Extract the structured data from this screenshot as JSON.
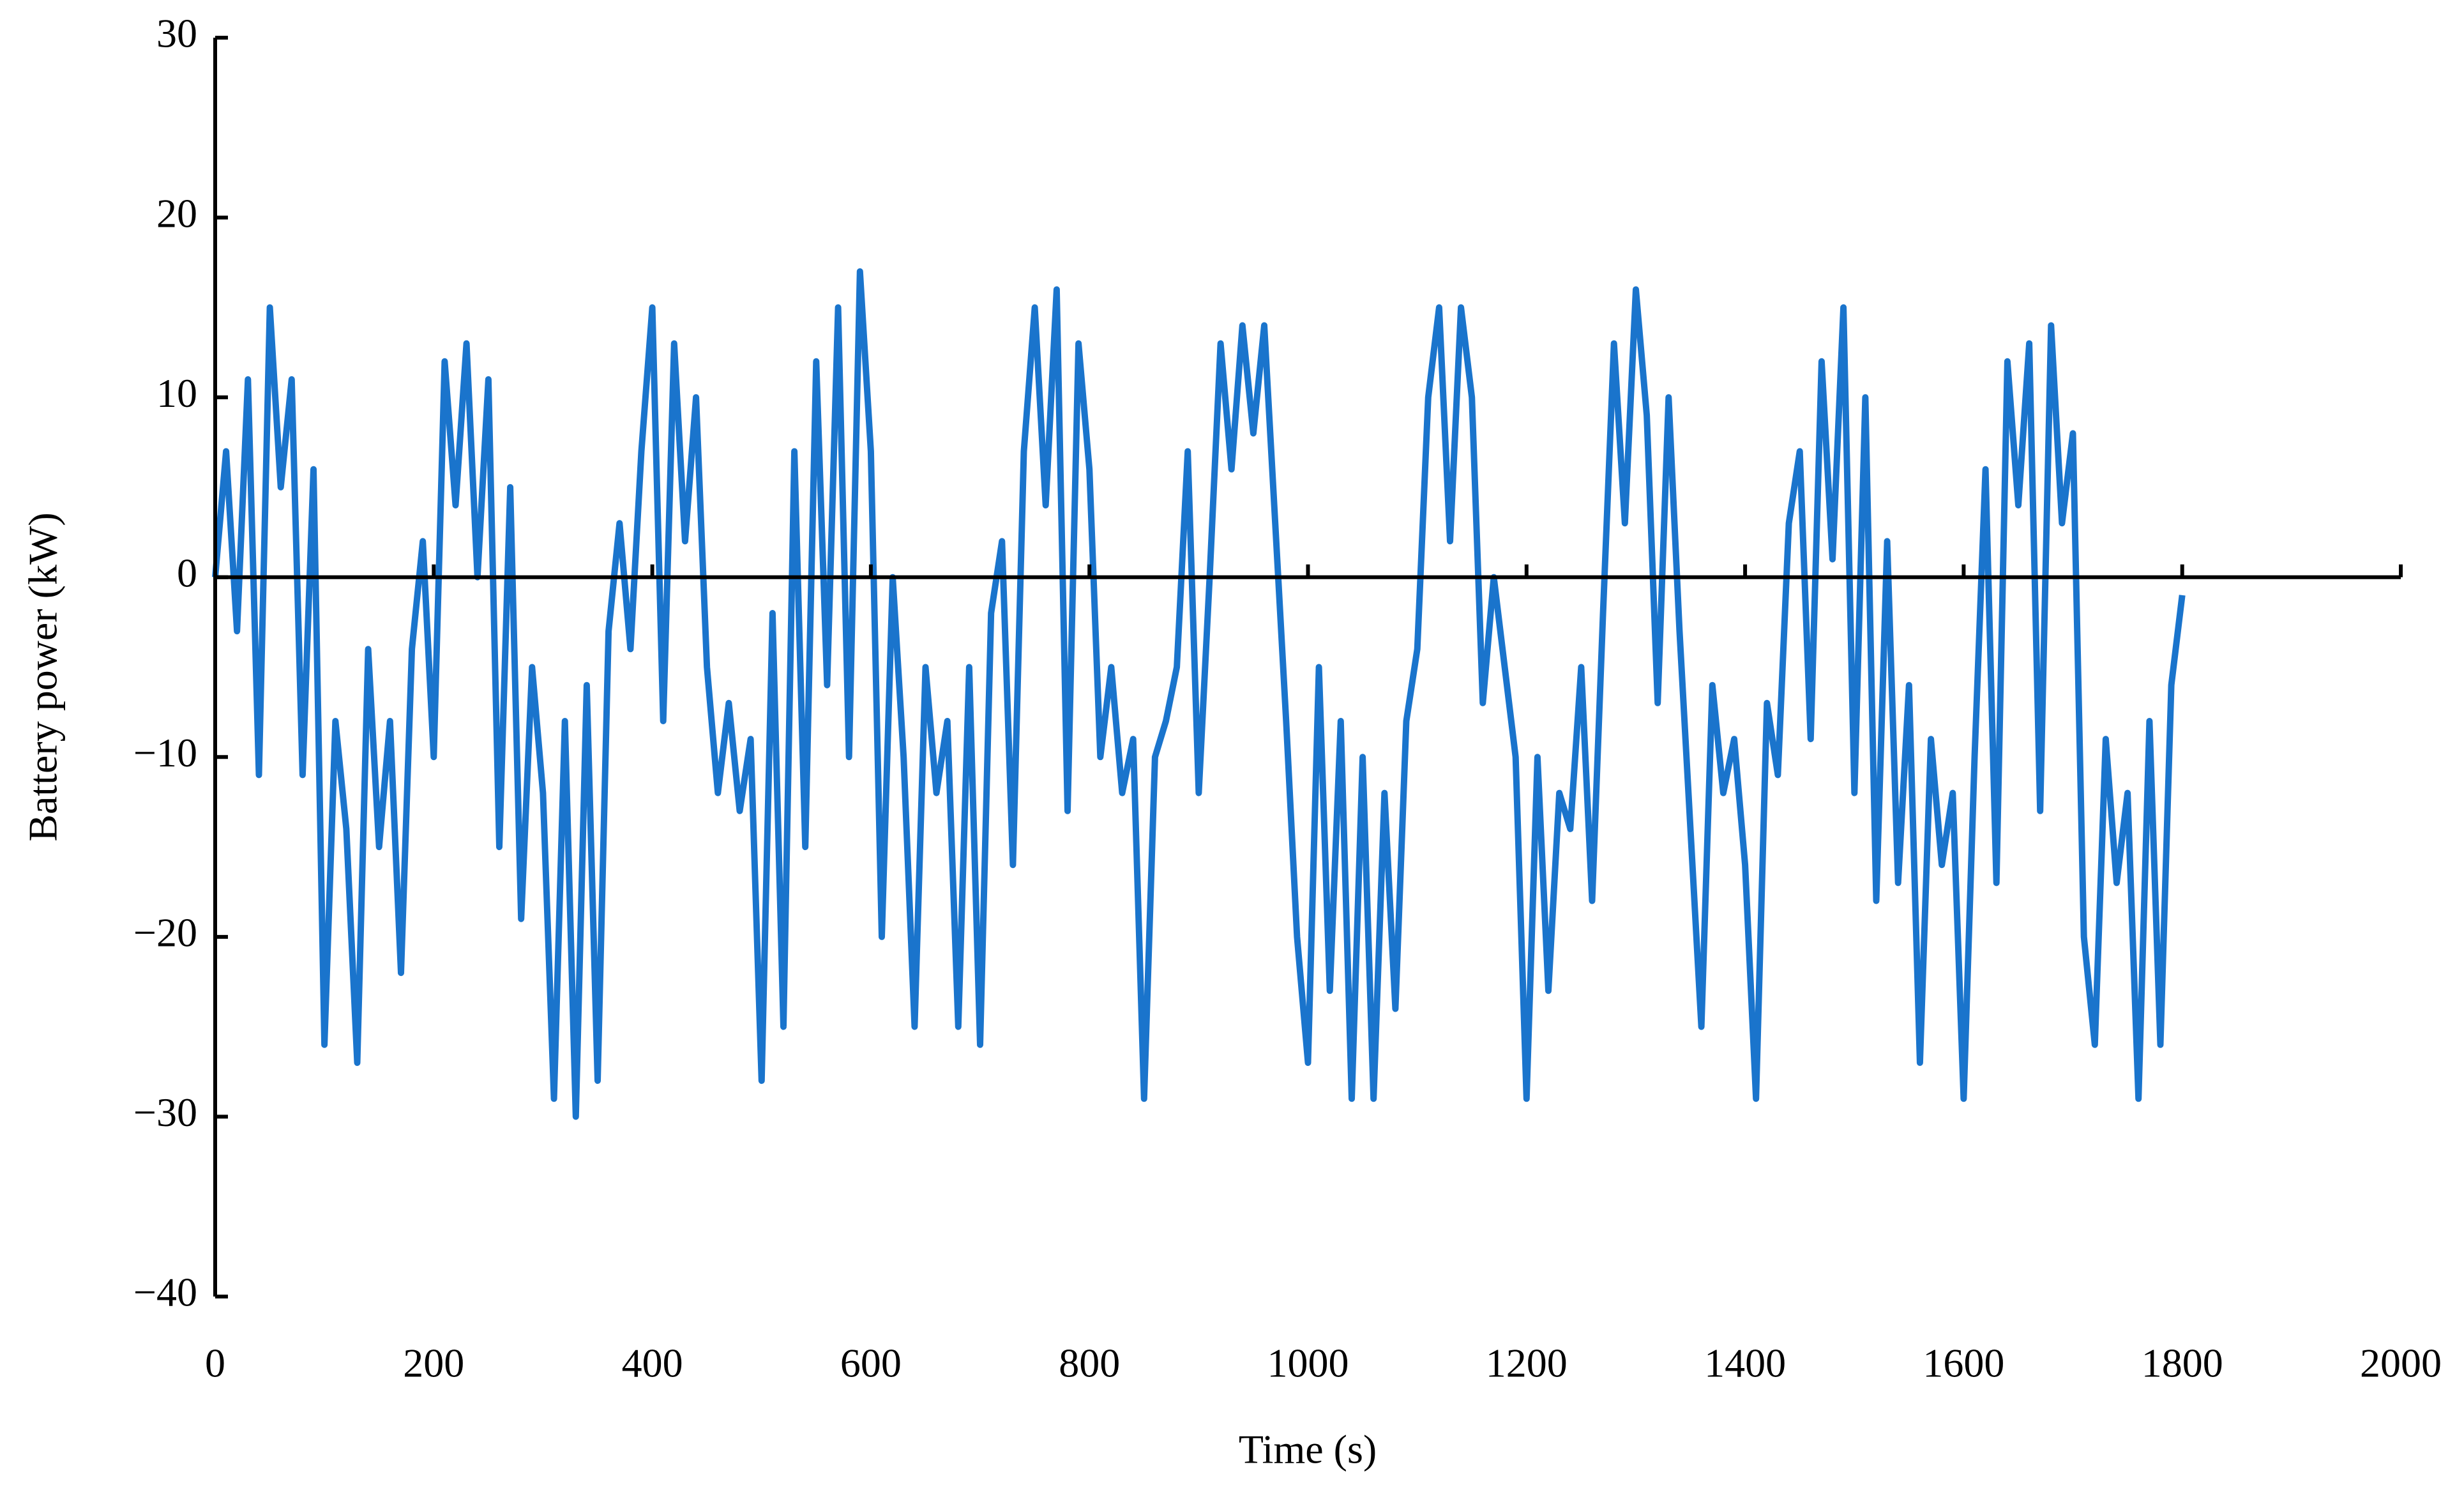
{
  "chart_data": {
    "type": "line",
    "x_label": "Time (s)",
    "y_label": "Battery power (kW)",
    "color": "#1a74cc",
    "x": [
      0,
      10,
      20,
      30,
      40,
      50,
      60,
      70,
      80,
      90,
      100,
      110,
      120,
      130,
      140,
      150,
      160,
      170,
      180,
      190,
      200,
      210,
      220,
      230,
      240,
      250,
      260,
      270,
      280,
      290,
      300,
      310,
      320,
      330,
      340,
      350,
      360,
      370,
      380,
      390,
      400,
      410,
      420,
      430,
      440,
      450,
      460,
      470,
      480,
      490,
      500,
      510,
      520,
      530,
      540,
      550,
      560,
      570,
      580,
      590,
      600,
      610,
      620,
      630,
      640,
      650,
      660,
      670,
      680,
      690,
      700,
      710,
      720,
      730,
      740,
      750,
      760,
      770,
      780,
      790,
      800,
      810,
      820,
      830,
      840,
      850,
      860,
      870,
      880,
      890,
      900,
      910,
      920,
      930,
      940,
      950,
      960,
      970,
      980,
      990,
      1000,
      1010,
      1020,
      1030,
      1040,
      1050,
      1060,
      1070,
      1080,
      1090,
      1100,
      1110,
      1120,
      1130,
      1140,
      1150,
      1160,
      1170,
      1180,
      1190,
      1200,
      1210,
      1220,
      1230,
      1240,
      1250,
      1260,
      1270,
      1280,
      1290,
      1300,
      1310,
      1320,
      1330,
      1340,
      1350,
      1360,
      1370,
      1380,
      1390,
      1400,
      1410,
      1420,
      1430,
      1440,
      1450,
      1460,
      1470,
      1480,
      1490,
      1500,
      1510,
      1520,
      1530,
      1540,
      1550,
      1560,
      1570,
      1580,
      1590,
      1600,
      1610,
      1620,
      1630,
      1640,
      1650,
      1660,
      1670,
      1680,
      1690,
      1700,
      1710,
      1720,
      1730,
      1740,
      1750,
      1760,
      1770,
      1780,
      1790,
      1800
    ],
    "values": [
      0,
      7,
      -3,
      11,
      -11,
      15,
      5,
      11,
      -11,
      6,
      -26,
      -8,
      -14,
      -27,
      -4,
      -15,
      -8,
      -22,
      -4,
      2,
      -10,
      12,
      4,
      13,
      0,
      11,
      -15,
      5,
      -19,
      -5,
      -12,
      -29,
      -8,
      -30,
      -6,
      -28,
      -3,
      3,
      -4,
      7,
      15,
      -8,
      13,
      2,
      10,
      -5,
      -12,
      -7,
      -13,
      -9,
      -28,
      -2,
      -25,
      7,
      -15,
      12,
      -6,
      15,
      -10,
      17,
      7,
      -20,
      0,
      -10,
      -25,
      -5,
      -12,
      -8,
      -25,
      -5,
      -26,
      -2,
      2,
      -16,
      7,
      15,
      4,
      16,
      -13,
      13,
      6,
      -10,
      -5,
      -12,
      -9,
      -29,
      -10,
      -8,
      -5,
      7,
      -12,
      0,
      13,
      6,
      14,
      8,
      14,
      3,
      -8,
      -20,
      -27,
      -5,
      -23,
      -8,
      -29,
      -10,
      -29,
      -12,
      -24,
      -8,
      -4,
      10,
      15,
      2,
      15,
      10,
      -7,
      0,
      -5,
      -10,
      -29,
      -10,
      -23,
      -12,
      -14,
      -5,
      -18,
      -2,
      13,
      3,
      16,
      9,
      -7,
      10,
      -3,
      -14,
      -25,
      -6,
      -12,
      -9,
      -16,
      -29,
      -7,
      -11,
      3,
      7,
      -9,
      12,
      1,
      15,
      -12,
      10,
      -18,
      2,
      -17,
      -6,
      -27,
      -9,
      -16,
      -12,
      -29,
      -10,
      6,
      -17,
      12,
      4,
      13,
      -13,
      14,
      3,
      8,
      -20,
      -26,
      -9,
      -17,
      -12,
      -29,
      -8,
      -26,
      -6,
      -1
    ],
    "xlim": [
      0,
      2000
    ],
    "xticks": [
      0,
      200,
      400,
      600,
      800,
      1000,
      1200,
      1400,
      1600,
      1800,
      2000
    ],
    "ylim": [
      -40,
      30
    ],
    "yticks": [
      {
        "value": -40,
        "label": "−40"
      },
      {
        "value": -30,
        "label": "−30"
      },
      {
        "value": -20,
        "label": "−20"
      },
      {
        "value": -10,
        "label": "−10"
      },
      0,
      10,
      20,
      30
    ]
  }
}
